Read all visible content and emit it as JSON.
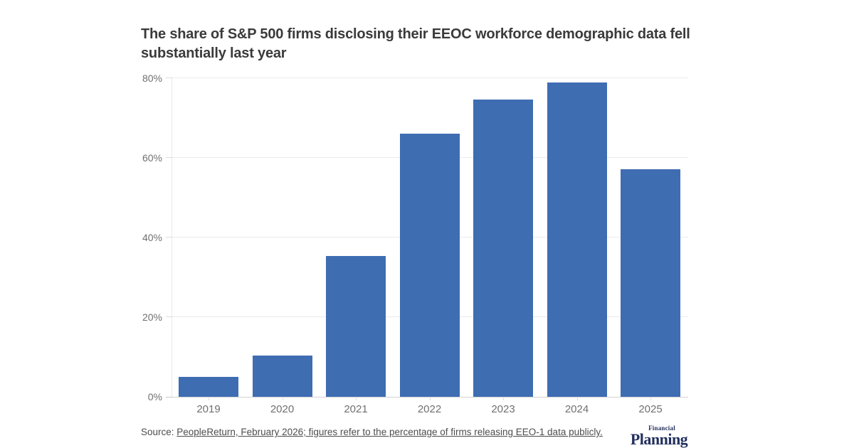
{
  "header": {
    "title": "The share of S&P 500 firms disclosing their EEOC workforce demographic data fell substantially last year"
  },
  "source": {
    "prefix": "Source: ",
    "link_text": "PeopleReturn, February 2026; figures refer to the percentage of firms releasing EEO-1 data publicly."
  },
  "logo": {
    "top_word": "Financial",
    "bottom_word": "Planning",
    "color": "#23305e"
  },
  "colors": {
    "bar": "#3e6db2",
    "gridline": "#ebebeb",
    "baseline": "#d2d2d2",
    "axis_text": "#707070",
    "title_text": "#3a3a3a",
    "source_text": "#4d4d4d"
  },
  "chart_data": {
    "type": "bar",
    "title": "The share of S&P 500 firms disclosing their EEOC workforce demographic data fell substantially last year",
    "categories": [
      "2019",
      "2020",
      "2021",
      "2022",
      "2023",
      "2024",
      "2025"
    ],
    "values": [
      5,
      10.3,
      35.4,
      66.1,
      74.6,
      78.9,
      57.2
    ],
    "xlabel": "",
    "ylabel": "",
    "ylim": [
      0,
      80
    ],
    "yticks": [
      0,
      20,
      40,
      60,
      80
    ],
    "ytick_labels": [
      "0%",
      "20%",
      "40%",
      "60%",
      "80%"
    ],
    "grid": "horizontal",
    "legend": "none",
    "bar_color": "#3e6db2"
  }
}
